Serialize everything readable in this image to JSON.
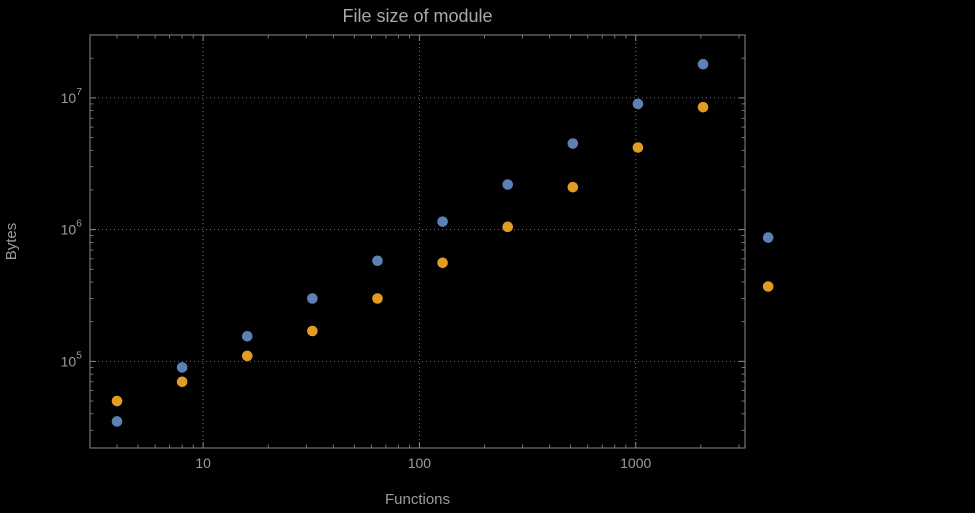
{
  "chart_data": {
    "type": "scatter",
    "title": "File size of module",
    "xlabel": "Functions",
    "ylabel": "Bytes",
    "x_scale": "log",
    "y_scale": "log",
    "xlim": [
      3,
      3200
    ],
    "ylim": [
      22000,
      30000000
    ],
    "x_ticks": [
      10,
      100,
      1000
    ],
    "y_ticks": [
      100000,
      1000000,
      10000000
    ],
    "grid": "dotted-major",
    "legend": "none",
    "background": "#000000",
    "series": [
      {
        "name": "series-blue",
        "color": "#5E81B5",
        "marker": "circle",
        "points": [
          [
            4,
            35000
          ],
          [
            8,
            90000
          ],
          [
            16,
            155000
          ],
          [
            32,
            300000
          ],
          [
            64,
            580000
          ],
          [
            128,
            1150000
          ],
          [
            256,
            2200000
          ],
          [
            512,
            4500000
          ],
          [
            1024,
            9000000
          ],
          [
            2048,
            18000000
          ],
          [
            4096,
            870000
          ]
        ]
      },
      {
        "name": "series-orange",
        "color": "#E19C24",
        "marker": "circle",
        "points": [
          [
            4,
            50000
          ],
          [
            8,
            70000
          ],
          [
            16,
            110000
          ],
          [
            32,
            170000
          ],
          [
            64,
            300000
          ],
          [
            128,
            560000
          ],
          [
            256,
            1050000
          ],
          [
            512,
            2100000
          ],
          [
            1024,
            4200000
          ],
          [
            2048,
            8500000
          ],
          [
            4096,
            370000
          ]
        ]
      }
    ]
  }
}
